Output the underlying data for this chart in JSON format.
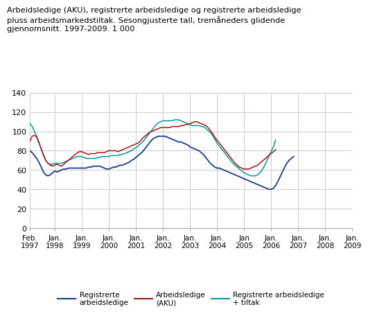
{
  "title": "Arbeidsledige (AKU), registrerte arbeidsledige og registrerte arbeidsledige\npluss arbeidsmarkedstiltak. Sesongjusterte tall, tremåneders glidende\ngjennomsnitt. 1997-2009. 1 000",
  "ylim": [
    0,
    140
  ],
  "yticks": [
    0,
    20,
    40,
    60,
    80,
    100,
    120,
    140
  ],
  "background_color": "#ffffff",
  "grid_color": "#cccccc",
  "line_blue_color": "#1a3a8a",
  "line_red_color": "#aa1111",
  "line_teal_color": "#009999",
  "registrerte": [
    80,
    78,
    75,
    72,
    68,
    63,
    58,
    55,
    54,
    55,
    57,
    59,
    58,
    59,
    60,
    61,
    61,
    62,
    62,
    62,
    62,
    62,
    62,
    62,
    62,
    62,
    63,
    63,
    64,
    64,
    64,
    64,
    63,
    62,
    61,
    61,
    62,
    63,
    63,
    64,
    65,
    65,
    66,
    67,
    68,
    70,
    71,
    73,
    75,
    77,
    79,
    82,
    85,
    88,
    91,
    93,
    94,
    95,
    95,
    95,
    95,
    94,
    93,
    92,
    91,
    90,
    89,
    89,
    88,
    87,
    86,
    84,
    83,
    82,
    81,
    80,
    78,
    76,
    73,
    70,
    67,
    65,
    63,
    62,
    62,
    61,
    60,
    59,
    58,
    57,
    56,
    55,
    54,
    53,
    52,
    51,
    50,
    49,
    48,
    47,
    46,
    45,
    44,
    43,
    42,
    41,
    40,
    40,
    41,
    44,
    48,
    53,
    58,
    63,
    67,
    70,
    72,
    74
  ],
  "aku": [
    90,
    95,
    96,
    94,
    88,
    82,
    75,
    70,
    67,
    65,
    64,
    65,
    66,
    65,
    64,
    66,
    68,
    70,
    72,
    74,
    76,
    78,
    79,
    79,
    78,
    77,
    76,
    77,
    77,
    77,
    78,
    78,
    78,
    78,
    79,
    80,
    80,
    80,
    80,
    79,
    80,
    81,
    82,
    83,
    84,
    85,
    86,
    87,
    88,
    90,
    93,
    95,
    97,
    99,
    100,
    101,
    102,
    103,
    104,
    104,
    104,
    104,
    104,
    105,
    105,
    105,
    105,
    106,
    106,
    107,
    107,
    108,
    109,
    110,
    110,
    109,
    108,
    107,
    106,
    104,
    101,
    98,
    94,
    91,
    88,
    85,
    82,
    79,
    76,
    73,
    70,
    67,
    65,
    63,
    62,
    61,
    61,
    61,
    62,
    63,
    64,
    65,
    67,
    69,
    71,
    73,
    75,
    77,
    79,
    81
  ],
  "tiltak": [
    108,
    105,
    100,
    95,
    89,
    82,
    76,
    70,
    67,
    66,
    66,
    67,
    67,
    67,
    67,
    68,
    69,
    70,
    71,
    72,
    73,
    74,
    74,
    74,
    73,
    72,
    72,
    72,
    72,
    72,
    73,
    73,
    74,
    74,
    74,
    74,
    75,
    75,
    75,
    75,
    76,
    76,
    77,
    78,
    79,
    80,
    82,
    83,
    85,
    87,
    89,
    92,
    95,
    98,
    101,
    104,
    107,
    109,
    110,
    111,
    111,
    111,
    111,
    111,
    112,
    112,
    112,
    111,
    110,
    109,
    108,
    107,
    106,
    106,
    106,
    106,
    105,
    105,
    103,
    101,
    99,
    96,
    92,
    88,
    85,
    82,
    79,
    76,
    73,
    70,
    67,
    65,
    63,
    61,
    59,
    57,
    56,
    55,
    54,
    54,
    54,
    55,
    57,
    60,
    64,
    69,
    74,
    79,
    84,
    91
  ],
  "xtick_positions": [
    0,
    11,
    23,
    35,
    47,
    59,
    71,
    83,
    95,
    107,
    119,
    131,
    143
  ],
  "xtick_top": [
    "Feb.",
    "Jan.",
    "Jan.",
    "Jan.",
    "Jan.",
    "Jan.",
    "Jan.",
    "Jan.",
    "Jan",
    "Jan.",
    "Jan.",
    "Jan.",
    "Jan."
  ],
  "xtick_bot": [
    "1997",
    "1998",
    "1999",
    "2000",
    "2001",
    "2002",
    "2003",
    "2004",
    "2005",
    "2006",
    "2007",
    "2008",
    "2009"
  ]
}
